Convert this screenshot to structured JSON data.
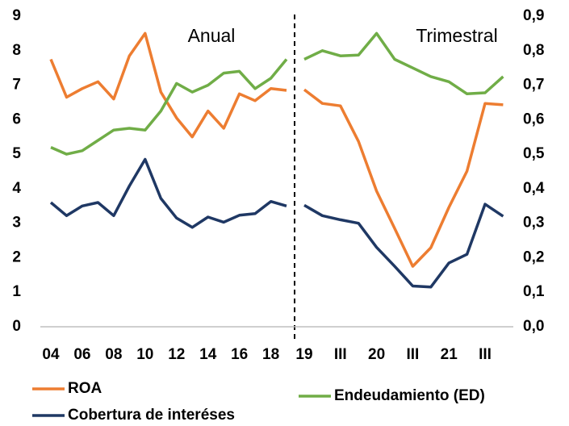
{
  "chart_data": [
    {
      "type": "line",
      "annotation": "Anual",
      "categories": [
        "04",
        null,
        "06",
        null,
        "08",
        null,
        "10",
        null,
        "12",
        null,
        "14",
        null,
        "16",
        null,
        "18",
        null
      ],
      "ylim": [
        0,
        9
      ],
      "yticks": [
        0,
        1,
        2,
        3,
        4,
        5,
        6,
        7,
        8,
        9
      ],
      "y2lim": [
        0,
        0.9
      ],
      "y2ticks": [
        {
          "value": 0,
          "label": "0,0"
        },
        {
          "value": 0.1,
          "label": "0,1"
        },
        {
          "value": 0.2,
          "label": "0,2"
        },
        {
          "value": 0.3,
          "label": "0,3"
        },
        {
          "value": 0.4,
          "label": "0,4"
        },
        {
          "value": 0.5,
          "label": "0,5"
        },
        {
          "value": 0.6,
          "label": "0,6"
        },
        {
          "value": 0.7,
          "label": "0,7"
        },
        {
          "value": 0.8,
          "label": "0,8"
        },
        {
          "value": 0.9,
          "label": "0,9"
        }
      ],
      "series": [
        {
          "name": "ROA",
          "color": "#ed7d31",
          "values": [
            7.75,
            6.65,
            6.9,
            7.1,
            6.6,
            7.85,
            8.5,
            6.8,
            6.05,
            5.5,
            6.25,
            5.75,
            6.75,
            6.55,
            6.9,
            6.85
          ]
        },
        {
          "name": "Endeudamiento (ED)",
          "color": "#70ad47",
          "axis": "y2",
          "values": [
            0.52,
            0.5,
            0.51,
            0.54,
            0.57,
            0.575,
            0.57,
            0.625,
            0.705,
            0.68,
            0.7,
            0.735,
            0.74,
            0.69,
            0.72,
            0.775
          ]
        },
        {
          "name": "Cobertura de interéses",
          "color": "#1f3864",
          "values": [
            3.6,
            3.22,
            3.5,
            3.6,
            3.22,
            4.08,
            4.85,
            3.72,
            3.15,
            2.88,
            3.18,
            3.03,
            3.23,
            3.28,
            3.63,
            3.5
          ]
        }
      ]
    },
    {
      "type": "line",
      "annotation": "Trimestral",
      "categories": [
        "19",
        null,
        "III",
        null,
        "20",
        null,
        "III",
        null,
        "21",
        null,
        "III",
        null
      ],
      "series": [
        {
          "color": "#ed7d31",
          "values": [
            6.87,
            6.47,
            6.4,
            5.37,
            3.93,
            2.85,
            1.75,
            2.29,
            3.46,
            4.51,
            6.47,
            6.43
          ]
        },
        {
          "color": "#70ad47",
          "axis": "y2",
          "values": [
            0.775,
            0.8,
            0.785,
            0.787,
            0.85,
            0.775,
            0.75,
            0.725,
            0.71,
            0.675,
            0.678,
            0.725
          ]
        },
        {
          "color": "#1f3864",
          "values": [
            3.52,
            3.22,
            3.1,
            3.0,
            2.3,
            1.75,
            1.18,
            1.15,
            1.85,
            2.1,
            3.55,
            3.2
          ]
        }
      ]
    }
  ]
}
